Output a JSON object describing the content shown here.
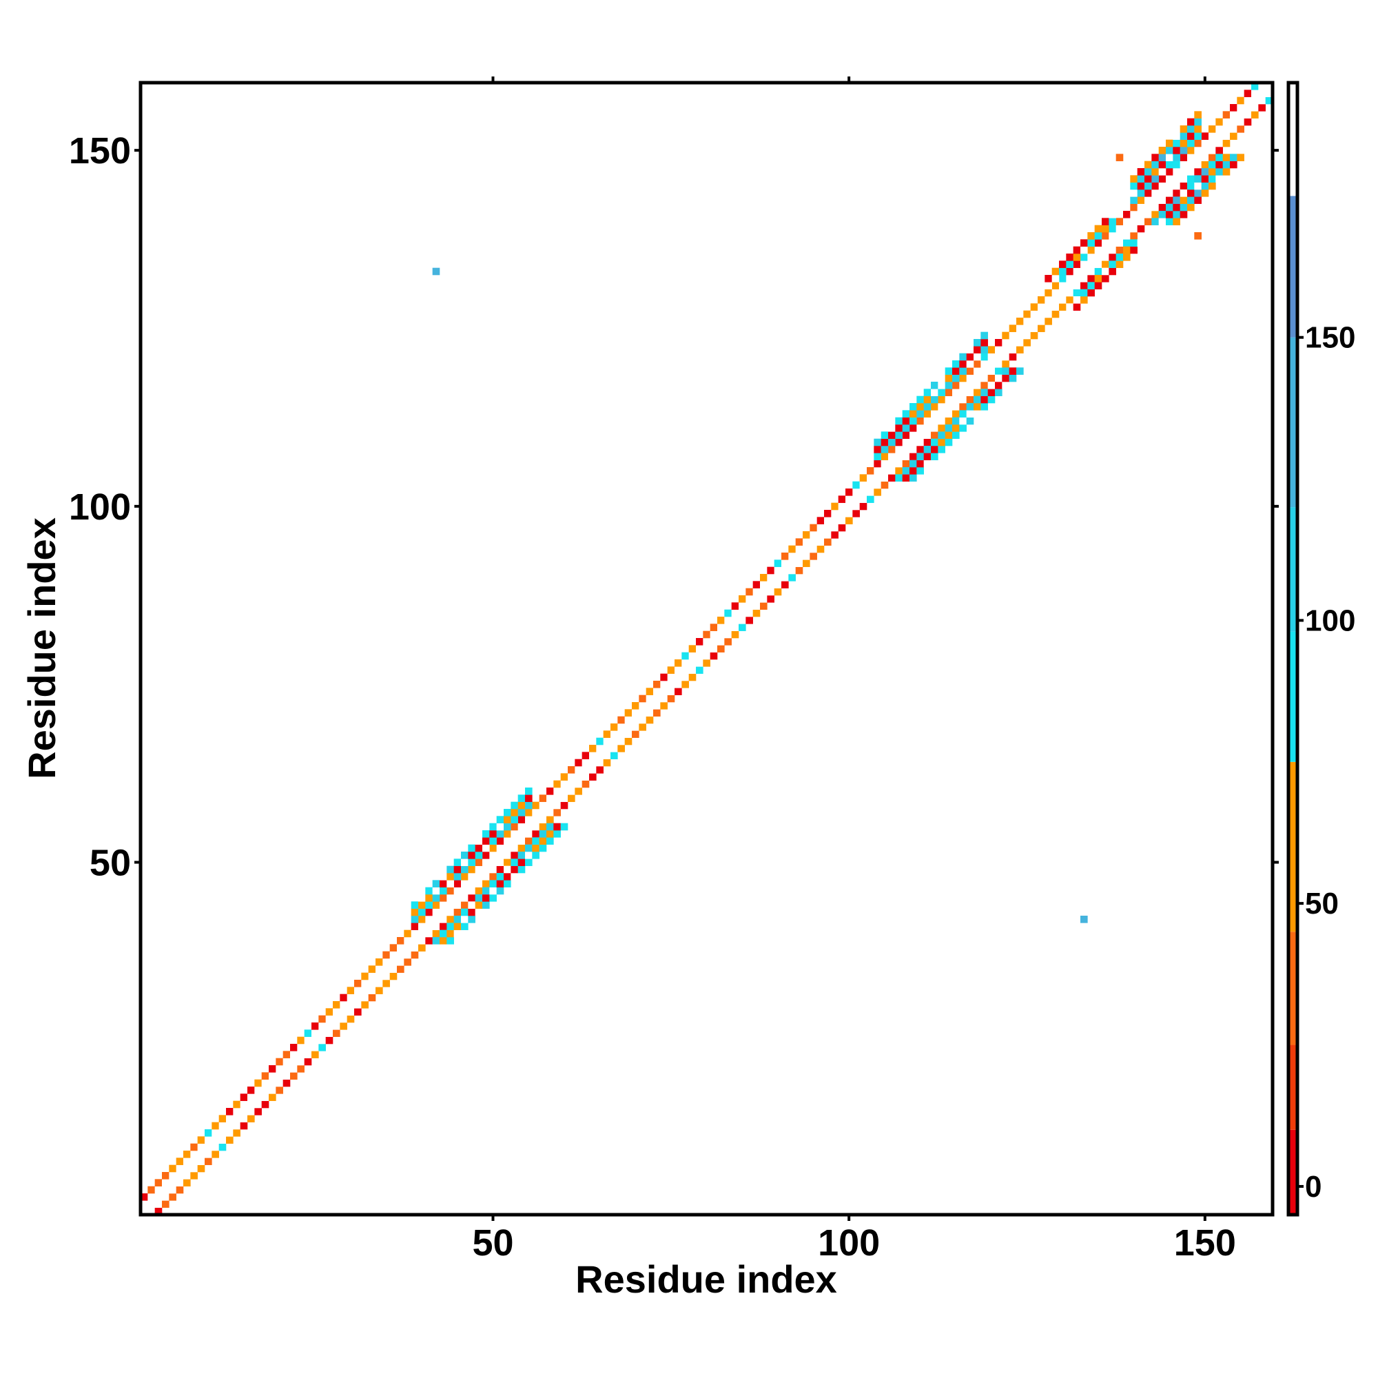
{
  "chart_data": {
    "type": "heatmap",
    "title": "",
    "xlabel": "Residue index",
    "ylabel": "Residue index",
    "xlim": [
      0.5,
      159.5
    ],
    "ylim": [
      0.5,
      159.5
    ],
    "x_ticks": [
      50,
      100,
      150
    ],
    "y_ticks": [
      50,
      100,
      150
    ],
    "grid": false,
    "colorbar": {
      "placement": "right",
      "range": [
        -5,
        195
      ],
      "ticks": [
        0,
        50,
        100,
        150
      ],
      "levels": [
        {
          "from": -5,
          "to": 10,
          "color": "#e8000b"
        },
        {
          "from": 10,
          "to": 25,
          "color": "#f03c0a"
        },
        {
          "from": 25,
          "to": 45,
          "color": "#fb6a12"
        },
        {
          "from": 45,
          "to": 75,
          "color": "#ff9a00"
        },
        {
          "from": 75,
          "to": 98,
          "color": "#19e3f0"
        },
        {
          "from": 98,
          "to": 120,
          "color": "#28d0e8"
        },
        {
          "from": 120,
          "to": 150,
          "color": "#45b3dd"
        },
        {
          "from": 150,
          "to": 175,
          "color": "#5b8fd0"
        },
        {
          "from": 175,
          "to": 195,
          "color": "#ffffff"
        }
      ]
    },
    "diagonal_band": {
      "residues": [
        1,
        159
      ],
      "half_width": 2,
      "main_diagonal_value": 190
    },
    "extended_regions": [
      {
        "from": 39,
        "to": 55,
        "half_width": 5,
        "value": 100
      },
      {
        "from": 104,
        "to": 119,
        "half_width": 5,
        "value": 100
      },
      {
        "from": 128,
        "to": 137,
        "half_width": 4,
        "value": 90
      },
      {
        "from": 140,
        "to": 149,
        "half_width": 6,
        "value": 110
      }
    ],
    "isolated_points": [
      {
        "x": 42,
        "y": 133,
        "value": 130
      },
      {
        "x": 133,
        "y": 42,
        "value": 130
      },
      {
        "x": 138,
        "y": 149,
        "value": 40
      },
      {
        "x": 149,
        "y": 138,
        "value": 40
      }
    ]
  }
}
